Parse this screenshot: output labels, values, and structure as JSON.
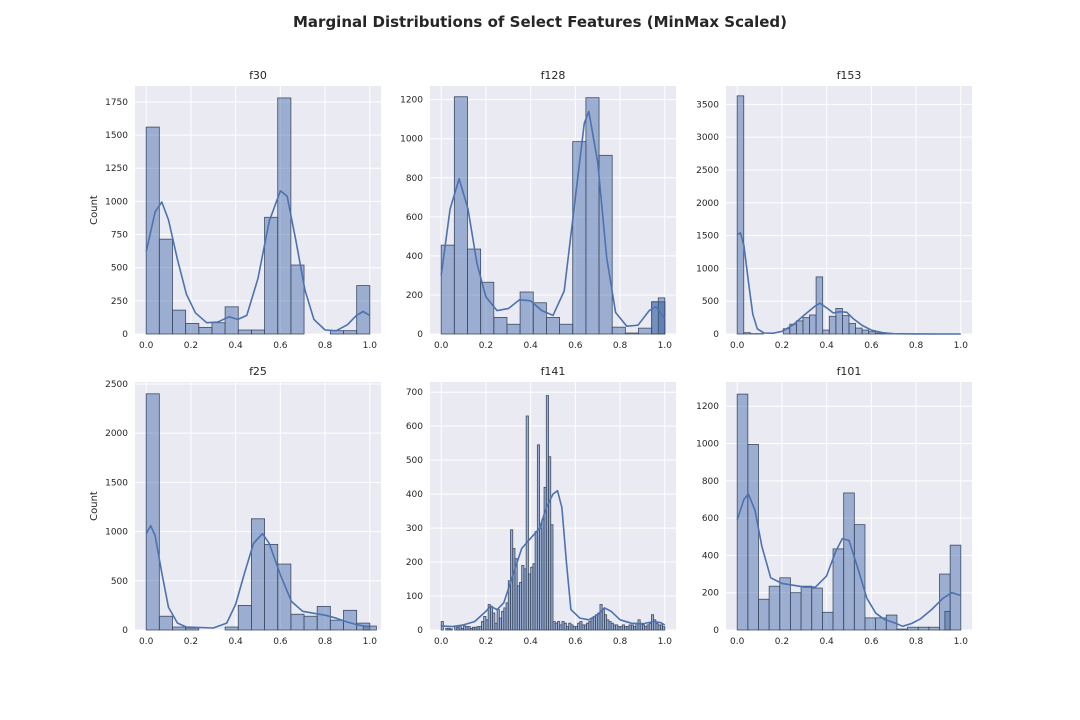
{
  "figure": {
    "title": "Marginal Distributions of Select Features (MinMax Scaled)",
    "background": "#ffffff",
    "axes_background": "#eaeaf2",
    "bar_color": "#4c72b0",
    "edge_color": "#3d4b63"
  },
  "chart_data": [
    {
      "type": "bar",
      "title": "f30",
      "xlabel": "",
      "ylabel": "Count",
      "xlim": [
        -0.05,
        1.05
      ],
      "ylim": [
        0,
        1870
      ],
      "xticks": [
        0.0,
        0.2,
        0.4,
        0.6,
        0.8,
        1.0
      ],
      "xtick_labels": [
        "0.0",
        "0.2",
        "0.4",
        "0.6",
        "0.8",
        "1.0"
      ],
      "yticks": [
        0,
        250,
        500,
        750,
        1000,
        1250,
        1500,
        1750
      ],
      "ytick_labels": [
        "0",
        "250",
        "500",
        "750",
        "1000",
        "1250",
        "1500",
        "1750"
      ],
      "bin_width": 0.0588,
      "bins": [
        [
          0.0,
          1560
        ],
        [
          0.0588,
          715
        ],
        [
          0.1176,
          180
        ],
        [
          0.1765,
          80
        ],
        [
          0.2353,
          50
        ],
        [
          0.2941,
          85
        ],
        [
          0.3529,
          205
        ],
        [
          0.4118,
          30
        ],
        [
          0.4706,
          30
        ],
        [
          0.5294,
          880
        ],
        [
          0.5882,
          1780
        ],
        [
          0.6471,
          520
        ],
        [
          0.7059,
          0
        ],
        [
          0.7647,
          0
        ],
        [
          0.8235,
          25
        ],
        [
          0.8824,
          25
        ],
        [
          0.9412,
          365
        ]
      ],
      "kde": [
        [
          0.0,
          620
        ],
        [
          0.04,
          920
        ],
        [
          0.07,
          995
        ],
        [
          0.1,
          860
        ],
        [
          0.14,
          560
        ],
        [
          0.18,
          300
        ],
        [
          0.22,
          160
        ],
        [
          0.27,
          85
        ],
        [
          0.32,
          90
        ],
        [
          0.37,
          130
        ],
        [
          0.41,
          110
        ],
        [
          0.45,
          140
        ],
        [
          0.5,
          420
        ],
        [
          0.55,
          850
        ],
        [
          0.6,
          1080
        ],
        [
          0.63,
          1040
        ],
        [
          0.67,
          700
        ],
        [
          0.71,
          330
        ],
        [
          0.75,
          110
        ],
        [
          0.8,
          30
        ],
        [
          0.85,
          25
        ],
        [
          0.9,
          70
        ],
        [
          0.94,
          140
        ],
        [
          0.97,
          170
        ],
        [
          1.0,
          140
        ]
      ]
    },
    {
      "type": "bar",
      "title": "f128",
      "xlabel": "",
      "ylabel": "",
      "xlim": [
        -0.05,
        1.05
      ],
      "ylim": [
        0,
        1270
      ],
      "xticks": [
        0.0,
        0.2,
        0.4,
        0.6,
        0.8,
        1.0
      ],
      "xtick_labels": [
        "0.0",
        "0.2",
        "0.4",
        "0.6",
        "0.8",
        "1.0"
      ],
      "yticks": [
        0,
        200,
        400,
        600,
        800,
        1000,
        1200
      ],
      "ytick_labels": [
        "0",
        "200",
        "400",
        "600",
        "800",
        "1000",
        "1200"
      ],
      "bin_width": 0.0588,
      "bins": [
        [
          0.0,
          455
        ],
        [
          0.0588,
          1215
        ],
        [
          0.1176,
          435
        ],
        [
          0.1765,
          265
        ],
        [
          0.2353,
          85
        ],
        [
          0.2941,
          50
        ],
        [
          0.3529,
          215
        ],
        [
          0.4118,
          160
        ],
        [
          0.4706,
          85
        ],
        [
          0.5294,
          50
        ],
        [
          0.5882,
          985
        ],
        [
          0.6471,
          1210
        ],
        [
          0.7059,
          915
        ],
        [
          0.7647,
          35
        ],
        [
          0.8235,
          5
        ],
        [
          0.8824,
          30
        ],
        [
          0.9412,
          165
        ],
        [
          0.9412,
          165
        ]
      ],
      "bins_right": [
        [
          0.9706,
          185
        ]
      ],
      "kde": [
        [
          0.0,
          300
        ],
        [
          0.04,
          640
        ],
        [
          0.08,
          795
        ],
        [
          0.12,
          640
        ],
        [
          0.16,
          360
        ],
        [
          0.2,
          190
        ],
        [
          0.25,
          120
        ],
        [
          0.3,
          130
        ],
        [
          0.35,
          175
        ],
        [
          0.4,
          170
        ],
        [
          0.45,
          120
        ],
        [
          0.5,
          95
        ],
        [
          0.55,
          220
        ],
        [
          0.6,
          700
        ],
        [
          0.64,
          1080
        ],
        [
          0.66,
          1140
        ],
        [
          0.7,
          880
        ],
        [
          0.74,
          390
        ],
        [
          0.78,
          110
        ],
        [
          0.83,
          40
        ],
        [
          0.88,
          45
        ],
        [
          0.93,
          120
        ],
        [
          0.96,
          140
        ],
        [
          1.0,
          80
        ]
      ]
    },
    {
      "type": "bar",
      "title": "f153",
      "xlabel": "",
      "ylabel": "",
      "xlim": [
        -0.05,
        1.05
      ],
      "ylim": [
        0,
        3780
      ],
      "xticks": [
        0.0,
        0.2,
        0.4,
        0.6,
        0.8,
        1.0
      ],
      "xtick_labels": [
        "0.0",
        "0.2",
        "0.4",
        "0.6",
        "0.8",
        "1.0"
      ],
      "yticks": [
        0,
        500,
        1000,
        1500,
        2000,
        2500,
        3000,
        3500
      ],
      "ytick_labels": [
        "0",
        "500",
        "1000",
        "1500",
        "2000",
        "2500",
        "3000",
        "3500"
      ],
      "bin_width": 0.0294,
      "bins": [
        [
          0.0,
          3630
        ],
        [
          0.0294,
          20
        ],
        [
          0.0588,
          5
        ],
        [
          0.0882,
          5
        ],
        [
          0.1176,
          0
        ],
        [
          0.1471,
          0
        ],
        [
          0.1765,
          0
        ],
        [
          0.2059,
          80
        ],
        [
          0.2353,
          150
        ],
        [
          0.2647,
          200
        ],
        [
          0.2941,
          250
        ],
        [
          0.3235,
          290
        ],
        [
          0.3529,
          870
        ],
        [
          0.3824,
          60
        ],
        [
          0.4118,
          270
        ],
        [
          0.4412,
          390
        ],
        [
          0.4706,
          280
        ],
        [
          0.5,
          160
        ],
        [
          0.5294,
          90
        ],
        [
          0.5588,
          60
        ],
        [
          0.5882,
          35
        ],
        [
          0.6176,
          15
        ],
        [
          0.6471,
          10
        ],
        [
          0.6765,
          5
        ]
      ],
      "kde": [
        [
          0.0,
          1520
        ],
        [
          0.015,
          1540
        ],
        [
          0.03,
          1350
        ],
        [
          0.05,
          800
        ],
        [
          0.07,
          300
        ],
        [
          0.09,
          80
        ],
        [
          0.12,
          15
        ],
        [
          0.16,
          10
        ],
        [
          0.2,
          40
        ],
        [
          0.25,
          140
        ],
        [
          0.3,
          290
        ],
        [
          0.35,
          430
        ],
        [
          0.37,
          470
        ],
        [
          0.4,
          400
        ],
        [
          0.43,
          320
        ],
        [
          0.46,
          340
        ],
        [
          0.49,
          330
        ],
        [
          0.52,
          230
        ],
        [
          0.56,
          130
        ],
        [
          0.6,
          60
        ],
        [
          0.65,
          20
        ],
        [
          0.7,
          5
        ],
        [
          0.8,
          2
        ],
        [
          1.0,
          0
        ]
      ]
    },
    {
      "type": "bar",
      "title": "f25",
      "xlabel": "",
      "ylabel": "Count",
      "xlim": [
        -0.05,
        1.05
      ],
      "ylim": [
        0,
        2520
      ],
      "xticks": [
        0.0,
        0.2,
        0.4,
        0.6,
        0.8,
        1.0
      ],
      "xtick_labels": [
        "0.0",
        "0.2",
        "0.4",
        "0.6",
        "0.8",
        "1.0"
      ],
      "yticks": [
        0,
        500,
        1000,
        1500,
        2000,
        2500
      ],
      "ytick_labels": [
        "0",
        "500",
        "1000",
        "1500",
        "2000",
        "2500"
      ],
      "bin_width": 0.0588,
      "bins": [
        [
          0.0,
          2400
        ],
        [
          0.0588,
          140
        ],
        [
          0.1176,
          30
        ],
        [
          0.1765,
          20
        ],
        [
          0.2353,
          0
        ],
        [
          0.2941,
          0
        ],
        [
          0.3529,
          30
        ],
        [
          0.4118,
          250
        ],
        [
          0.4706,
          1130
        ],
        [
          0.5294,
          870
        ],
        [
          0.5882,
          670
        ],
        [
          0.6471,
          160
        ],
        [
          0.7059,
          140
        ],
        [
          0.7647,
          240
        ],
        [
          0.8235,
          100
        ],
        [
          0.8824,
          200
        ],
        [
          0.9412,
          70
        ],
        [
          0.9706,
          40
        ]
      ],
      "kde": [
        [
          0.0,
          980
        ],
        [
          0.02,
          1060
        ],
        [
          0.04,
          960
        ],
        [
          0.07,
          580
        ],
        [
          0.1,
          230
        ],
        [
          0.14,
          70
        ],
        [
          0.18,
          30
        ],
        [
          0.24,
          25
        ],
        [
          0.3,
          20
        ],
        [
          0.36,
          70
        ],
        [
          0.4,
          260
        ],
        [
          0.44,
          580
        ],
        [
          0.48,
          880
        ],
        [
          0.52,
          980
        ],
        [
          0.55,
          880
        ],
        [
          0.6,
          560
        ],
        [
          0.65,
          290
        ],
        [
          0.7,
          190
        ],
        [
          0.75,
          170
        ],
        [
          0.8,
          150
        ],
        [
          0.85,
          120
        ],
        [
          0.9,
          80
        ],
        [
          0.95,
          50
        ],
        [
          1.0,
          30
        ]
      ]
    },
    {
      "type": "bar",
      "title": "f141",
      "xlabel": "",
      "ylabel": "",
      "xlim": [
        -0.05,
        1.05
      ],
      "ylim": [
        0,
        730
      ],
      "xticks": [
        0.0,
        0.2,
        0.4,
        0.6,
        0.8,
        1.0
      ],
      "xtick_labels": [
        "0.0",
        "0.2",
        "0.4",
        "0.6",
        "0.8",
        "1.0"
      ],
      "yticks": [
        0,
        100,
        200,
        300,
        400,
        500,
        600,
        700
      ],
      "ytick_labels": [
        "0",
        "100",
        "200",
        "300",
        "400",
        "500",
        "600",
        "700"
      ],
      "bin_width": 0.01,
      "values_by_bin": [
        25,
        0,
        5,
        5,
        3,
        0,
        10,
        8,
        12,
        5,
        12,
        10,
        10,
        5,
        8,
        8,
        10,
        10,
        25,
        40,
        30,
        75,
        70,
        50,
        20,
        60,
        35,
        55,
        65,
        80,
        145,
        295,
        240,
        210,
        130,
        140,
        190,
        180,
        630,
        165,
        185,
        195,
        290,
        545,
        300,
        325,
        420,
        690,
        510,
        310,
        25,
        20,
        25,
        15,
        25,
        20,
        10,
        20,
        15,
        10,
        10,
        20,
        25,
        15,
        15,
        20,
        25,
        35,
        40,
        45,
        50,
        75,
        60,
        45,
        30,
        25,
        20,
        15,
        15,
        10,
        10,
        15,
        10,
        10,
        15,
        15,
        10,
        20,
        30,
        20,
        15,
        10,
        15,
        20,
        45,
        30,
        20,
        15,
        15,
        10
      ],
      "kde": [
        [
          0.0,
          12
        ],
        [
          0.05,
          10
        ],
        [
          0.1,
          15
        ],
        [
          0.15,
          25
        ],
        [
          0.2,
          55
        ],
        [
          0.22,
          70
        ],
        [
          0.25,
          60
        ],
        [
          0.28,
          80
        ],
        [
          0.32,
          160
        ],
        [
          0.36,
          240
        ],
        [
          0.4,
          270
        ],
        [
          0.44,
          300
        ],
        [
          0.47,
          360
        ],
        [
          0.5,
          400
        ],
        [
          0.52,
          410
        ],
        [
          0.54,
          360
        ],
        [
          0.56,
          200
        ],
        [
          0.58,
          60
        ],
        [
          0.62,
          35
        ],
        [
          0.66,
          30
        ],
        [
          0.7,
          45
        ],
        [
          0.73,
          65
        ],
        [
          0.76,
          55
        ],
        [
          0.8,
          30
        ],
        [
          0.85,
          20
        ],
        [
          0.9,
          18
        ],
        [
          0.95,
          25
        ],
        [
          0.98,
          22
        ],
        [
          1.0,
          15
        ]
      ]
    },
    {
      "type": "bar",
      "title": "f101",
      "xlabel": "",
      "ylabel": "",
      "xlim": [
        -0.05,
        1.05
      ],
      "ylim": [
        0,
        1330
      ],
      "xticks": [
        0.0,
        0.2,
        0.4,
        0.6,
        0.8,
        1.0
      ],
      "xtick_labels": [
        "0.0",
        "0.2",
        "0.4",
        "0.6",
        "0.8",
        "1.0"
      ],
      "yticks": [
        0,
        200,
        400,
        600,
        800,
        1000,
        1200
      ],
      "ytick_labels": [
        "0",
        "200",
        "400",
        "600",
        "800",
        "1000",
        "1200"
      ],
      "bin_width": 0.0476,
      "bins": [
        [
          0.0,
          1265
        ],
        [
          0.0476,
          995
        ],
        [
          0.0952,
          165
        ],
        [
          0.1429,
          235
        ],
        [
          0.1905,
          280
        ],
        [
          0.2381,
          200
        ],
        [
          0.2857,
          235
        ],
        [
          0.3333,
          225
        ],
        [
          0.381,
          95
        ],
        [
          0.4286,
          435
        ],
        [
          0.4762,
          735
        ],
        [
          0.5238,
          565
        ],
        [
          0.5714,
          65
        ],
        [
          0.619,
          65
        ],
        [
          0.6667,
          80
        ],
        [
          0.7143,
          5
        ],
        [
          0.7619,
          15
        ],
        [
          0.8095,
          15
        ],
        [
          0.8571,
          15
        ],
        [
          0.9048,
          300
        ],
        [
          0.9524,
          455
        ]
      ],
      "bins_extra": [
        [
          0.9286,
          100
        ]
      ],
      "kde": [
        [
          0.0,
          590
        ],
        [
          0.03,
          700
        ],
        [
          0.05,
          730
        ],
        [
          0.08,
          640
        ],
        [
          0.11,
          450
        ],
        [
          0.15,
          280
        ],
        [
          0.2,
          250
        ],
        [
          0.25,
          240
        ],
        [
          0.3,
          230
        ],
        [
          0.35,
          230
        ],
        [
          0.4,
          290
        ],
        [
          0.44,
          420
        ],
        [
          0.47,
          490
        ],
        [
          0.5,
          480
        ],
        [
          0.54,
          330
        ],
        [
          0.58,
          170
        ],
        [
          0.62,
          90
        ],
        [
          0.66,
          55
        ],
        [
          0.7,
          40
        ],
        [
          0.74,
          20
        ],
        [
          0.78,
          35
        ],
        [
          0.82,
          60
        ],
        [
          0.87,
          110
        ],
        [
          0.92,
          170
        ],
        [
          0.96,
          200
        ],
        [
          1.0,
          185
        ]
      ]
    }
  ]
}
